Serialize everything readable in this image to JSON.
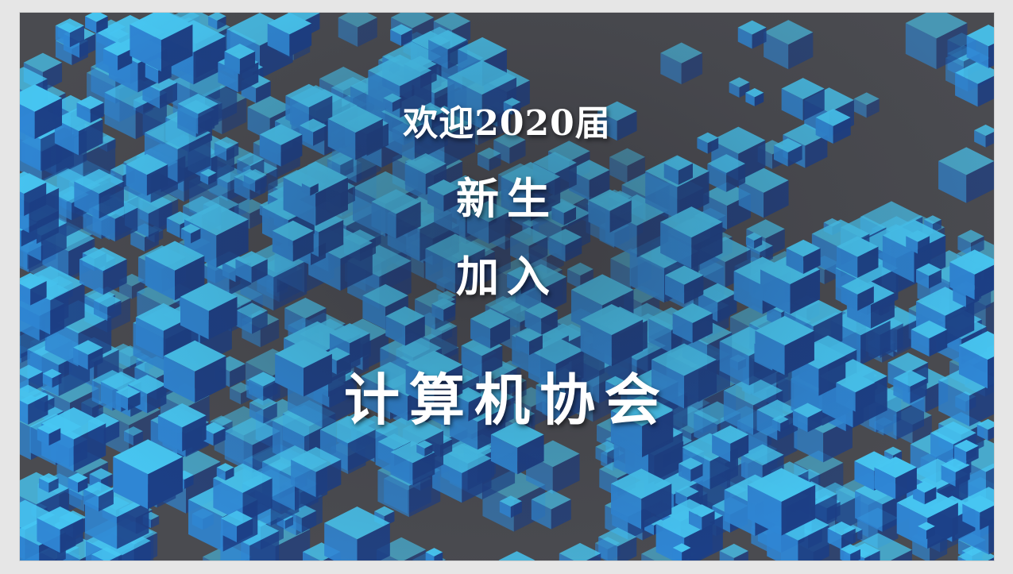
{
  "slide": {
    "line1": "欢迎2020届",
    "line2": "新生",
    "line3": "加入",
    "line4": "计算机协会"
  },
  "theme": {
    "background": "#4a4b50",
    "cube_light": "#47c6f2",
    "cube_mid": "#2f86d4",
    "cube_dark": "#1c3f86",
    "text": "#ffffff"
  },
  "image": {
    "icon": "blue-cubes-background"
  }
}
